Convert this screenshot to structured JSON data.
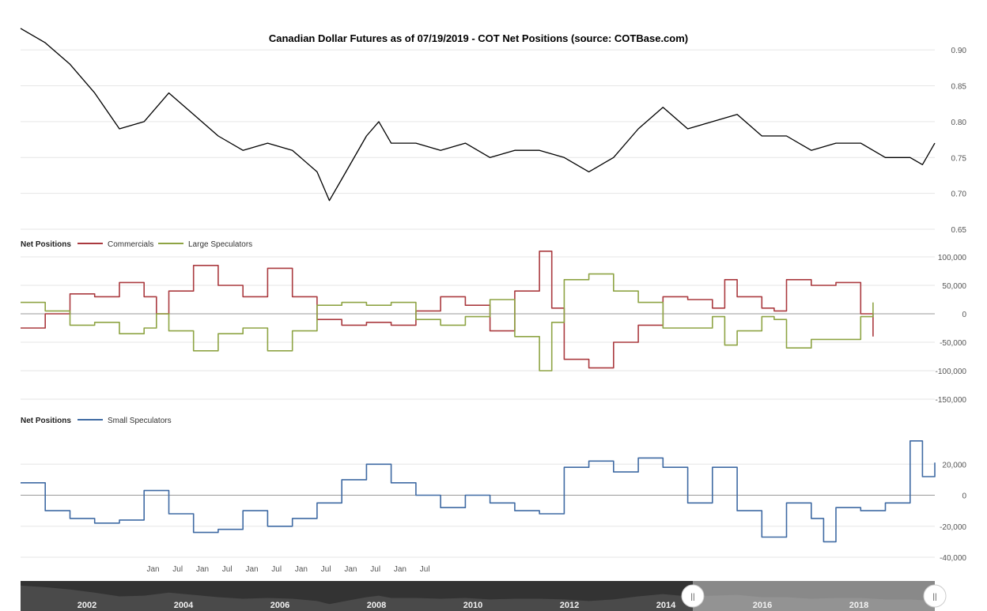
{
  "chart_data": [
    {
      "type": "line",
      "title": "Canadian Dollar Futures as of 07/19/2019 - COT Net Positions (source: COTBase.com)",
      "x_range": [
        "2001-01",
        "2019-07"
      ],
      "ylim": [
        0.65,
        0.92
      ],
      "y_ticks": [
        "0.90",
        "0.85",
        "0.80",
        "0.75",
        "0.70",
        "0.65"
      ],
      "series": [
        {
          "color": "#000000",
          "points": [
            [
              "2001-01",
              0.93
            ],
            [
              "2001-07",
              0.91
            ],
            [
              "2002-01",
              0.88
            ],
            [
              "2002-07",
              0.84
            ],
            [
              "2003-01",
              0.79
            ],
            [
              "2003-07",
              0.8
            ],
            [
              "2004-01",
              0.84
            ],
            [
              "2004-07",
              0.81
            ],
            [
              "2005-01",
              0.78
            ],
            [
              "2005-07",
              0.76
            ],
            [
              "2006-01",
              0.77
            ],
            [
              "2006-07",
              0.76
            ],
            [
              "2007-01",
              0.73
            ],
            [
              "2007-04",
              0.69
            ],
            [
              "2007-07",
              0.72
            ],
            [
              "2008-01",
              0.78
            ],
            [
              "2008-04",
              0.8
            ],
            [
              "2008-07",
              0.77
            ],
            [
              "2009-01",
              0.77
            ],
            [
              "2009-07",
              0.76
            ],
            [
              "2010-01",
              0.77
            ],
            [
              "2010-07",
              0.75
            ],
            [
              "2011-01",
              0.76
            ],
            [
              "2011-07",
              0.76
            ],
            [
              "2012-01",
              0.75
            ],
            [
              "2012-07",
              0.73
            ],
            [
              "2013-01",
              0.75
            ],
            [
              "2013-07",
              0.79
            ],
            [
              "2014-01",
              0.82
            ],
            [
              "2014-07",
              0.79
            ],
            [
              "2015-01",
              0.8
            ],
            [
              "2015-07",
              0.81
            ],
            [
              "2016-01",
              0.78
            ],
            [
              "2016-07",
              0.78
            ],
            [
              "2017-01",
              0.76
            ],
            [
              "2017-07",
              0.77
            ],
            [
              "2018-01",
              0.77
            ],
            [
              "2018-07",
              0.75
            ],
            [
              "2019-01",
              0.75
            ],
            [
              "2019-04",
              0.74
            ],
            [
              "2019-07",
              0.77
            ]
          ]
        }
      ]
    },
    {
      "type": "line",
      "legend_heading": "Net Positions",
      "x_range": [
        "2001-01",
        "2019-07"
      ],
      "ylim": [
        -150000,
        100000
      ],
      "y_ticks": [
        "100,000",
        "50,000",
        "0",
        "-50,000",
        "-100,000",
        "-150,000"
      ],
      "x_ticks": [
        "Jan",
        "Jul",
        "Jan",
        "Jul",
        "Jan",
        "Jul",
        "Jan",
        "Jul",
        "Jan",
        "Jul",
        "Jan"
      ],
      "series": [
        {
          "name": "Commercials",
          "color": "#aa3a3f",
          "points": [
            [
              "2001-01",
              -25000
            ],
            [
              "2001-07",
              0
            ],
            [
              "2002-01",
              35000
            ],
            [
              "2002-07",
              30000
            ],
            [
              "2003-01",
              55000
            ],
            [
              "2003-07",
              30000
            ],
            [
              "2003-10",
              0
            ],
            [
              "2004-01",
              40000
            ],
            [
              "2004-07",
              85000
            ],
            [
              "2005-01",
              50000
            ],
            [
              "2005-07",
              30000
            ],
            [
              "2006-01",
              80000
            ],
            [
              "2006-07",
              30000
            ],
            [
              "2007-01",
              -10000
            ],
            [
              "2007-07",
              -20000
            ],
            [
              "2008-01",
              -15000
            ],
            [
              "2008-07",
              -20000
            ],
            [
              "2009-01",
              5000
            ],
            [
              "2009-07",
              30000
            ],
            [
              "2010-01",
              15000
            ],
            [
              "2010-07",
              -30000
            ],
            [
              "2011-01",
              40000
            ],
            [
              "2011-07",
              110000
            ],
            [
              "2011-10",
              10000
            ],
            [
              "2012-01",
              -80000
            ],
            [
              "2012-07",
              -95000
            ],
            [
              "2013-01",
              -50000
            ],
            [
              "2013-07",
              -20000
            ],
            [
              "2014-01",
              30000
            ],
            [
              "2014-07",
              25000
            ],
            [
              "2015-01",
              10000
            ],
            [
              "2015-04",
              60000
            ],
            [
              "2015-07",
              30000
            ],
            [
              "2016-01",
              10000
            ],
            [
              "2016-04",
              5000
            ],
            [
              "2016-07",
              60000
            ],
            [
              "2017-01",
              50000
            ],
            [
              "2017-07",
              55000
            ],
            [
              "2018-01",
              0
            ],
            [
              "2018-04",
              -40000
            ]
          ]
        },
        {
          "name": "Large Speculators",
          "color": "#8ea444",
          "points": [
            [
              "2001-01",
              20000
            ],
            [
              "2001-07",
              5000
            ],
            [
              "2002-01",
              -20000
            ],
            [
              "2002-07",
              -15000
            ],
            [
              "2003-01",
              -35000
            ],
            [
              "2003-07",
              -25000
            ],
            [
              "2003-10",
              0
            ],
            [
              "2004-01",
              -30000
            ],
            [
              "2004-07",
              -65000
            ],
            [
              "2005-01",
              -35000
            ],
            [
              "2005-07",
              -25000
            ],
            [
              "2006-01",
              -65000
            ],
            [
              "2006-07",
              -30000
            ],
            [
              "2007-01",
              15000
            ],
            [
              "2007-07",
              20000
            ],
            [
              "2008-01",
              15000
            ],
            [
              "2008-07",
              20000
            ],
            [
              "2009-01",
              -10000
            ],
            [
              "2009-07",
              -20000
            ],
            [
              "2010-01",
              -5000
            ],
            [
              "2010-07",
              25000
            ],
            [
              "2011-01",
              -40000
            ],
            [
              "2011-07",
              -100000
            ],
            [
              "2011-10",
              -15000
            ],
            [
              "2012-01",
              60000
            ],
            [
              "2012-07",
              70000
            ],
            [
              "2013-01",
              40000
            ],
            [
              "2013-07",
              20000
            ],
            [
              "2014-01",
              -25000
            ],
            [
              "2014-07",
              -25000
            ],
            [
              "2015-01",
              -5000
            ],
            [
              "2015-04",
              -55000
            ],
            [
              "2015-07",
              -30000
            ],
            [
              "2016-01",
              -5000
            ],
            [
              "2016-04",
              -10000
            ],
            [
              "2016-07",
              -60000
            ],
            [
              "2017-01",
              -45000
            ],
            [
              "2017-07",
              -45000
            ],
            [
              "2018-01",
              -5000
            ],
            [
              "2018-04",
              20000
            ]
          ]
        }
      ]
    },
    {
      "type": "line",
      "legend_heading": "Net Positions",
      "x_range": [
        "2001-01",
        "2019-07"
      ],
      "ylim": [
        -40000,
        40000
      ],
      "y_ticks": [
        "20,000",
        "0",
        "-20,000",
        "-40,000"
      ],
      "x_ticks": [
        "Jan",
        "Jul",
        "Jan",
        "Jul",
        "Jan",
        "Jul",
        "Jan",
        "Jul",
        "Jan",
        "Jul",
        "Jan",
        "Jul"
      ],
      "series": [
        {
          "name": "Small Speculators",
          "color": "#3f6aa3",
          "points": [
            [
              "2001-01",
              8000
            ],
            [
              "2001-07",
              -10000
            ],
            [
              "2002-01",
              -15000
            ],
            [
              "2002-07",
              -18000
            ],
            [
              "2003-01",
              -16000
            ],
            [
              "2003-07",
              3000
            ],
            [
              "2004-01",
              -12000
            ],
            [
              "2004-07",
              -24000
            ],
            [
              "2005-01",
              -22000
            ],
            [
              "2005-07",
              -10000
            ],
            [
              "2006-01",
              -20000
            ],
            [
              "2006-07",
              -15000
            ],
            [
              "2007-01",
              -5000
            ],
            [
              "2007-07",
              10000
            ],
            [
              "2008-01",
              20000
            ],
            [
              "2008-07",
              8000
            ],
            [
              "2009-01",
              0
            ],
            [
              "2009-07",
              -8000
            ],
            [
              "2010-01",
              0
            ],
            [
              "2010-07",
              -5000
            ],
            [
              "2011-01",
              -10000
            ],
            [
              "2011-07",
              -12000
            ],
            [
              "2012-01",
              18000
            ],
            [
              "2012-07",
              22000
            ],
            [
              "2013-01",
              15000
            ],
            [
              "2013-07",
              24000
            ],
            [
              "2014-01",
              18000
            ],
            [
              "2014-07",
              -5000
            ],
            [
              "2015-01",
              18000
            ],
            [
              "2015-07",
              -10000
            ],
            [
              "2016-01",
              -27000
            ],
            [
              "2016-07",
              -5000
            ],
            [
              "2017-01",
              -15000
            ],
            [
              "2017-04",
              -30000
            ],
            [
              "2017-07",
              -8000
            ],
            [
              "2018-01",
              -10000
            ],
            [
              "2018-07",
              -5000
            ],
            [
              "2019-01",
              35000
            ],
            [
              "2019-04",
              12000
            ],
            [
              "2019-07",
              21000
            ]
          ]
        }
      ]
    }
  ],
  "navigator": {
    "labels": [
      "2002",
      "2004",
      "2006",
      "2008",
      "2010",
      "2012",
      "2014",
      "2016",
      "2018"
    ],
    "handle_glyph": "||"
  }
}
